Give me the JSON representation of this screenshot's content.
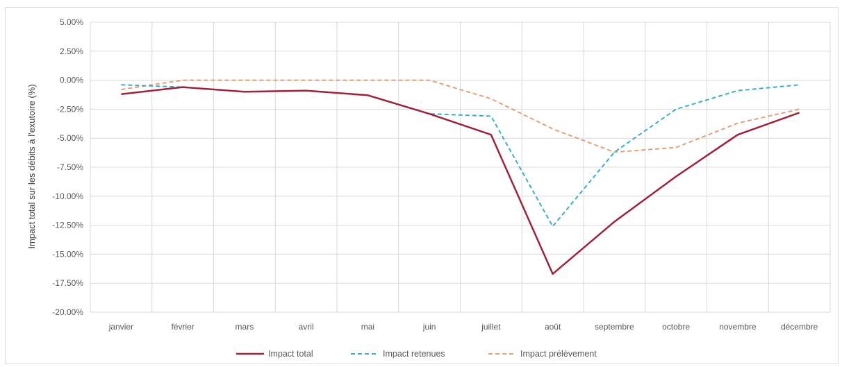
{
  "chart_data": {
    "type": "line",
    "title": "",
    "xlabel": "",
    "ylabel": "Impact total sur les débits à l'exutoire (%)",
    "ylim": [
      -20,
      5
    ],
    "yticks": [
      5,
      2.5,
      0,
      -2.5,
      -5,
      -7.5,
      -10,
      -12.5,
      -15,
      -17.5,
      -20
    ],
    "ytick_labels": [
      "5.00%",
      "2.50%",
      "0.00%",
      "-2.50%",
      "-5.00%",
      "-7.50%",
      "-10.00%",
      "-12.50%",
      "-15.00%",
      "-17.50%",
      "-20.00%"
    ],
    "categories": [
      "janvier",
      "février",
      "mars",
      "avril",
      "mai",
      "juin",
      "juillet",
      "août",
      "septembre",
      "octobre",
      "novembre",
      "décembre"
    ],
    "grid": true,
    "legend_position": "bottom",
    "series": [
      {
        "name": "Impact total",
        "color": "#a0213a",
        "dash": "solid",
        "values": [
          -1.2,
          -0.6,
          -1.0,
          -0.9,
          -1.3,
          -2.9,
          -4.7,
          -16.7,
          -12.2,
          -8.3,
          -4.7,
          -2.8
        ]
      },
      {
        "name": "Impact retenues",
        "color": "#3aaec8",
        "dash": "dashed",
        "values": [
          -0.4,
          -0.6,
          -1.0,
          -0.9,
          -1.3,
          -2.9,
          -3.1,
          -12.6,
          -6.2,
          -2.5,
          -0.9,
          -0.4
        ]
      },
      {
        "name": "Impact prélèvement",
        "color": "#e0a07a",
        "dash": "dashed",
        "values": [
          -0.8,
          0.0,
          0.0,
          0.0,
          0.0,
          0.0,
          -1.6,
          -4.2,
          -6.2,
          -5.8,
          -3.7,
          -2.5
        ]
      }
    ]
  }
}
